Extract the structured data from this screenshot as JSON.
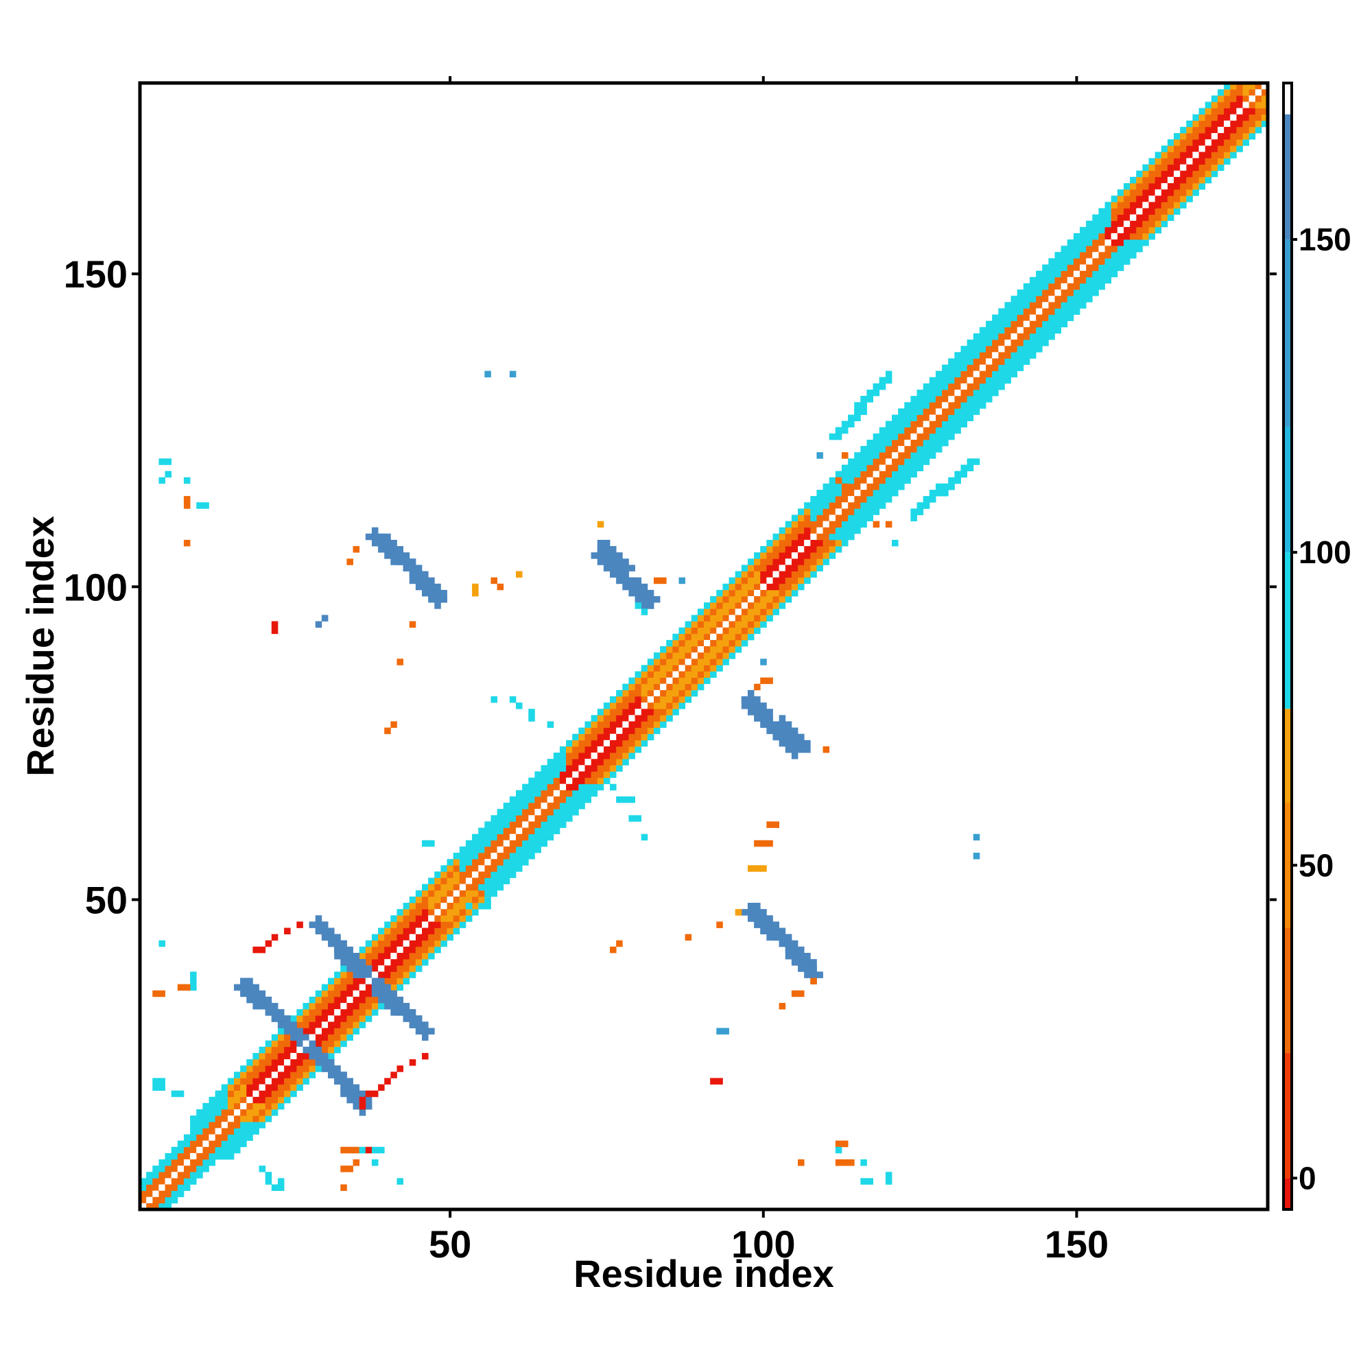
{
  "chart_data": {
    "type": "heatmap",
    "title": "",
    "xlabel": "Residue index",
    "ylabel": "Residue index",
    "xlim": [
      0.5,
      180.5
    ],
    "ylim": [
      0.5,
      180.5
    ],
    "x_ticks": [
      50,
      100,
      150
    ],
    "y_ticks": [
      50,
      100,
      150
    ],
    "colorbar": {
      "ticks": [
        0,
        50,
        100,
        150
      ],
      "range": [
        -5,
        175
      ],
      "bands": [
        {
          "from": -5,
          "to": 0,
          "color": "#e8170c"
        },
        {
          "from": 0,
          "to": 20,
          "color": "#f03c07"
        },
        {
          "from": 20,
          "to": 40,
          "color": "#f06a0a"
        },
        {
          "from": 40,
          "to": 60,
          "color": "#f7890a"
        },
        {
          "from": 60,
          "to": 75,
          "color": "#f5a10e"
        },
        {
          "from": 75,
          "to": 100,
          "color": "#1ed8e8"
        },
        {
          "from": 100,
          "to": 120,
          "color": "#23b8e0"
        },
        {
          "from": 120,
          "to": 150,
          "color": "#3a9fd0"
        },
        {
          "from": 150,
          "to": 170,
          "color": "#4b86bf"
        },
        {
          "from": 170,
          "to": 175,
          "color": "#ffffff"
        }
      ]
    },
    "colors": {
      "red": "#e8170c",
      "orange": "#f06a0a",
      "light_orange": "#f5a10e",
      "cyan": "#1ed8e8",
      "blue": "#4b86bf",
      "steel": "#3a9fd0"
    },
    "diagonal_band": {
      "from": 1,
      "to": 180,
      "offsets": [
        1,
        2,
        3,
        4,
        5,
        6
      ]
    },
    "segments": [
      {
        "x": [
          17,
          27
        ],
        "y": [
          37,
          27
        ],
        "color": "blue"
      },
      {
        "x": [
          29,
          36
        ],
        "y": [
          25,
          17
        ],
        "color": "blue"
      },
      {
        "x": [
          29,
          40
        ],
        "y": [
          46,
          35
        ],
        "color": "blue"
      },
      {
        "x": [
          38,
          46
        ],
        "y": [
          36,
          29
        ],
        "color": "blue"
      },
      {
        "x": [
          39,
          48
        ],
        "y": [
          108,
          98
        ],
        "color": "blue"
      },
      {
        "x": [
          74,
          82
        ],
        "y": [
          107,
          98
        ],
        "color": "blue"
      },
      {
        "x": [
          97,
          105
        ],
        "y": [
          82,
          74
        ],
        "color": "blue"
      },
      {
        "x": [
          98,
          108
        ],
        "y": [
          49,
          38
        ],
        "color": "blue"
      },
      {
        "x": [
          124,
          133
        ],
        "y": [
          112,
          120
        ],
        "color": "cyan"
      }
    ],
    "points": [
      {
        "x": 4,
        "y": 43,
        "color": "cyan"
      },
      {
        "x": 9,
        "y": 37,
        "color": "cyan"
      },
      {
        "x": 9,
        "y": 36,
        "color": "cyan"
      },
      {
        "x": 9,
        "y": 38,
        "color": "cyan"
      },
      {
        "x": 3,
        "y": 35,
        "color": "orange"
      },
      {
        "x": 4,
        "y": 35,
        "color": "orange"
      },
      {
        "x": 7,
        "y": 36,
        "color": "orange"
      },
      {
        "x": 8,
        "y": 36,
        "color": "orange"
      },
      {
        "x": 3,
        "y": 20,
        "color": "cyan"
      },
      {
        "x": 4,
        "y": 20,
        "color": "cyan"
      },
      {
        "x": 3,
        "y": 21,
        "color": "cyan"
      },
      {
        "x": 4,
        "y": 21,
        "color": "cyan"
      },
      {
        "x": 6,
        "y": 19,
        "color": "cyan"
      },
      {
        "x": 7,
        "y": 19,
        "color": "cyan"
      },
      {
        "x": 19,
        "y": 42,
        "color": "red"
      },
      {
        "x": 20,
        "y": 42,
        "color": "red"
      },
      {
        "x": 21,
        "y": 43,
        "color": "red"
      },
      {
        "x": 22,
        "y": 44,
        "color": "red"
      },
      {
        "x": 24,
        "y": 45,
        "color": "red"
      },
      {
        "x": 26,
        "y": 46,
        "color": "red"
      },
      {
        "x": 4,
        "y": 120,
        "color": "cyan"
      },
      {
        "x": 5,
        "y": 120,
        "color": "cyan"
      },
      {
        "x": 4,
        "y": 117,
        "color": "cyan"
      },
      {
        "x": 5,
        "y": 118,
        "color": "cyan"
      },
      {
        "x": 8,
        "y": 117,
        "color": "cyan"
      },
      {
        "x": 8,
        "y": 114,
        "color": "orange"
      },
      {
        "x": 8,
        "y": 113,
        "color": "orange"
      },
      {
        "x": 10,
        "y": 113,
        "color": "cyan"
      },
      {
        "x": 11,
        "y": 113,
        "color": "cyan"
      },
      {
        "x": 8,
        "y": 107,
        "color": "orange"
      },
      {
        "x": 22,
        "y": 94,
        "color": "red"
      },
      {
        "x": 22,
        "y": 93,
        "color": "red"
      },
      {
        "x": 29,
        "y": 94,
        "color": "blue"
      },
      {
        "x": 30,
        "y": 95,
        "color": "blue"
      },
      {
        "x": 34,
        "y": 104,
        "color": "orange"
      },
      {
        "x": 35,
        "y": 106,
        "color": "orange"
      },
      {
        "x": 44,
        "y": 94,
        "color": "orange"
      },
      {
        "x": 42,
        "y": 88,
        "color": "orange"
      },
      {
        "x": 41,
        "y": 78,
        "color": "orange"
      },
      {
        "x": 40,
        "y": 77,
        "color": "orange"
      },
      {
        "x": 46,
        "y": 59,
        "color": "cyan"
      },
      {
        "x": 47,
        "y": 59,
        "color": "cyan"
      },
      {
        "x": 54,
        "y": 100,
        "color": "light_orange"
      },
      {
        "x": 54,
        "y": 99,
        "color": "light_orange"
      },
      {
        "x": 57,
        "y": 101,
        "color": "orange"
      },
      {
        "x": 58,
        "y": 100,
        "color": "orange"
      },
      {
        "x": 61,
        "y": 102,
        "color": "light_orange"
      },
      {
        "x": 56,
        "y": 134,
        "color": "steel"
      },
      {
        "x": 60,
        "y": 134,
        "color": "steel"
      },
      {
        "x": 57,
        "y": 82,
        "color": "cyan"
      },
      {
        "x": 60,
        "y": 82,
        "color": "cyan"
      },
      {
        "x": 61,
        "y": 81,
        "color": "cyan"
      },
      {
        "x": 63,
        "y": 80,
        "color": "cyan"
      },
      {
        "x": 63,
        "y": 79,
        "color": "cyan"
      },
      {
        "x": 66,
        "y": 78,
        "color": "cyan"
      },
      {
        "x": 56,
        "y": 51,
        "color": "cyan"
      },
      {
        "x": 56,
        "y": 49,
        "color": "cyan"
      },
      {
        "x": 53,
        "y": 49,
        "color": "cyan"
      },
      {
        "x": 74,
        "y": 110,
        "color": "light_orange"
      },
      {
        "x": 83,
        "y": 101,
        "color": "orange"
      },
      {
        "x": 84,
        "y": 101,
        "color": "orange"
      },
      {
        "x": 87,
        "y": 101,
        "color": "steel"
      },
      {
        "x": 80,
        "y": 97,
        "color": "cyan"
      },
      {
        "x": 81,
        "y": 96,
        "color": "cyan"
      },
      {
        "x": 76,
        "y": 68,
        "color": "cyan"
      },
      {
        "x": 77,
        "y": 66,
        "color": "cyan"
      },
      {
        "x": 78,
        "y": 66,
        "color": "cyan"
      },
      {
        "x": 79,
        "y": 66,
        "color": "cyan"
      },
      {
        "x": 79,
        "y": 63,
        "color": "cyan"
      },
      {
        "x": 80,
        "y": 63,
        "color": "cyan"
      },
      {
        "x": 81,
        "y": 60,
        "color": "cyan"
      },
      {
        "x": 77,
        "y": 43,
        "color": "orange"
      },
      {
        "x": 76,
        "y": 42,
        "color": "orange"
      },
      {
        "x": 88,
        "y": 44,
        "color": "orange"
      },
      {
        "x": 93,
        "y": 46,
        "color": "orange"
      },
      {
        "x": 100,
        "y": 88,
        "color": "steel"
      },
      {
        "x": 100,
        "y": 85,
        "color": "orange"
      },
      {
        "x": 101,
        "y": 85,
        "color": "orange"
      },
      {
        "x": 99,
        "y": 84,
        "color": "orange"
      },
      {
        "x": 101,
        "y": 62,
        "color": "orange"
      },
      {
        "x": 102,
        "y": 62,
        "color": "orange"
      },
      {
        "x": 99,
        "y": 59,
        "color": "orange"
      },
      {
        "x": 100,
        "y": 59,
        "color": "orange"
      },
      {
        "x": 101,
        "y": 59,
        "color": "orange"
      },
      {
        "x": 98,
        "y": 55,
        "color": "light_orange"
      },
      {
        "x": 99,
        "y": 55,
        "color": "light_orange"
      },
      {
        "x": 100,
        "y": 55,
        "color": "light_orange"
      },
      {
        "x": 96,
        "y": 48,
        "color": "light_orange"
      },
      {
        "x": 110,
        "y": 74,
        "color": "orange"
      },
      {
        "x": 93,
        "y": 29,
        "color": "steel"
      },
      {
        "x": 94,
        "y": 29,
        "color": "steel"
      },
      {
        "x": 92,
        "y": 21,
        "color": "red"
      },
      {
        "x": 93,
        "y": 21,
        "color": "red"
      },
      {
        "x": 105,
        "y": 35,
        "color": "orange"
      },
      {
        "x": 106,
        "y": 35,
        "color": "orange"
      },
      {
        "x": 103,
        "y": 33,
        "color": "orange"
      },
      {
        "x": 108,
        "y": 37,
        "color": "orange"
      },
      {
        "x": 134,
        "y": 60,
        "color": "steel"
      },
      {
        "x": 134,
        "y": 57,
        "color": "steel"
      },
      {
        "x": 112,
        "y": 11,
        "color": "orange"
      },
      {
        "x": 113,
        "y": 11,
        "color": "orange"
      },
      {
        "x": 112,
        "y": 10,
        "color": "cyan"
      },
      {
        "x": 113,
        "y": 8,
        "color": "orange"
      },
      {
        "x": 114,
        "y": 8,
        "color": "orange"
      },
      {
        "x": 112,
        "y": 8,
        "color": "orange"
      },
      {
        "x": 116,
        "y": 8,
        "color": "cyan"
      },
      {
        "x": 106,
        "y": 8,
        "color": "orange"
      },
      {
        "x": 116,
        "y": 5,
        "color": "cyan"
      },
      {
        "x": 117,
        "y": 5,
        "color": "cyan"
      },
      {
        "x": 120,
        "y": 5,
        "color": "cyan"
      },
      {
        "x": 120,
        "y": 6,
        "color": "cyan"
      },
      {
        "x": 113,
        "y": 121,
        "color": "orange"
      },
      {
        "x": 109,
        "y": 121,
        "color": "steel"
      },
      {
        "x": 118,
        "y": 110,
        "color": "orange"
      },
      {
        "x": 120,
        "y": 110,
        "color": "orange"
      },
      {
        "x": 121,
        "y": 107,
        "color": "cyan"
      },
      {
        "x": 112,
        "y": 117,
        "color": "orange"
      },
      {
        "x": 113,
        "y": 116,
        "color": "orange"
      },
      {
        "x": 33,
        "y": 10,
        "color": "orange"
      },
      {
        "x": 34,
        "y": 10,
        "color": "orange"
      },
      {
        "x": 35,
        "y": 10,
        "color": "orange"
      },
      {
        "x": 36,
        "y": 10,
        "color": "cyan"
      },
      {
        "x": 37,
        "y": 10,
        "color": "red"
      },
      {
        "x": 38,
        "y": 10,
        "color": "cyan"
      },
      {
        "x": 39,
        "y": 10,
        "color": "cyan"
      },
      {
        "x": 33,
        "y": 7,
        "color": "orange"
      },
      {
        "x": 34,
        "y": 7,
        "color": "orange"
      },
      {
        "x": 35,
        "y": 8,
        "color": "orange"
      },
      {
        "x": 33,
        "y": 4,
        "color": "orange"
      },
      {
        "x": 38,
        "y": 8,
        "color": "cyan"
      },
      {
        "x": 42,
        "y": 5,
        "color": "cyan"
      },
      {
        "x": 20,
        "y": 7,
        "color": "cyan"
      },
      {
        "x": 21,
        "y": 6,
        "color": "cyan"
      },
      {
        "x": 21,
        "y": 5,
        "color": "cyan"
      },
      {
        "x": 22,
        "y": 4,
        "color": "cyan"
      },
      {
        "x": 23,
        "y": 4,
        "color": "cyan"
      },
      {
        "x": 23,
        "y": 5,
        "color": "cyan"
      },
      {
        "x": 36,
        "y": 17,
        "color": "red"
      },
      {
        "x": 36,
        "y": 18,
        "color": "red"
      },
      {
        "x": 37,
        "y": 19,
        "color": "red"
      },
      {
        "x": 38,
        "y": 19,
        "color": "red"
      },
      {
        "x": 39,
        "y": 20,
        "color": "red"
      },
      {
        "x": 40,
        "y": 21,
        "color": "red"
      },
      {
        "x": 41,
        "y": 22,
        "color": "red"
      },
      {
        "x": 42,
        "y": 23,
        "color": "red"
      },
      {
        "x": 44,
        "y": 24,
        "color": "red"
      },
      {
        "x": 46,
        "y": 25,
        "color": "red"
      }
    ]
  }
}
